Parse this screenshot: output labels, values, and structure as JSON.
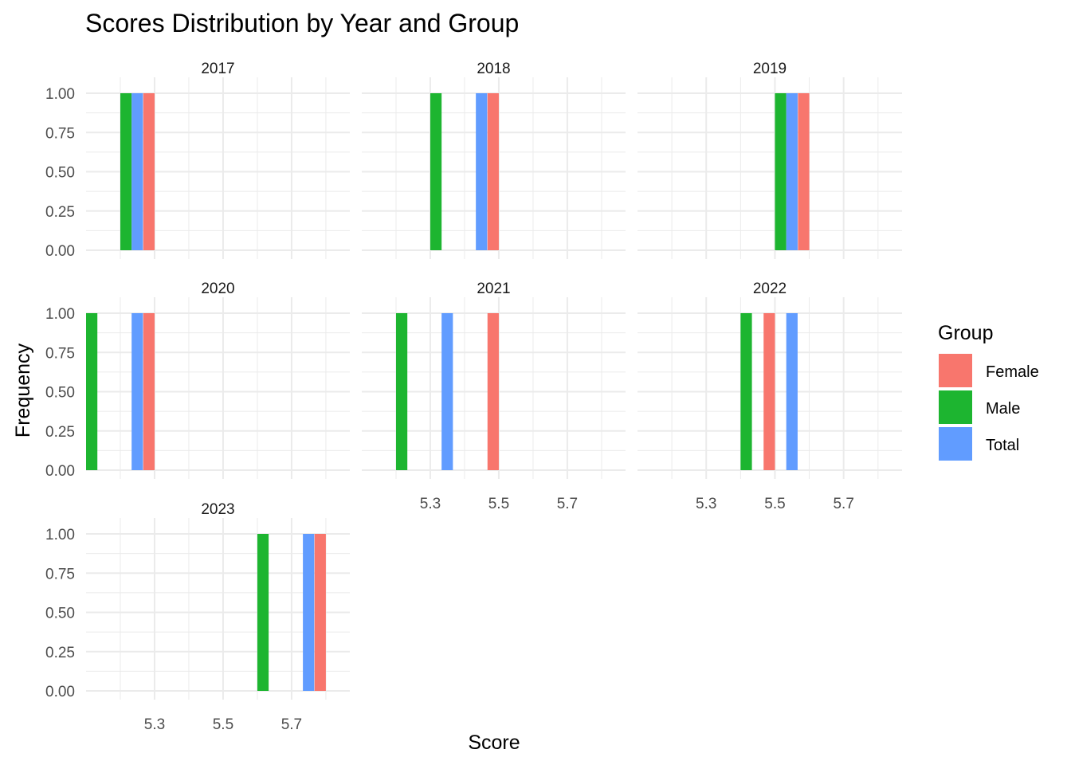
{
  "chart_data": {
    "type": "bar",
    "title": "Scores Distribution by Year and Group",
    "xlabel": "Score",
    "ylabel": "Frequency",
    "xlim": [
      5.1,
      5.87
    ],
    "ylim": [
      0,
      1
    ],
    "x_ticks": [
      "5.3",
      "5.5",
      "5.7"
    ],
    "y_ticks": [
      "0.00",
      "0.25",
      "0.50",
      "0.75",
      "1.00"
    ],
    "grid": true,
    "bin_width": 0.033,
    "legend": {
      "title": "Group",
      "position": "right",
      "entries": [
        "Female",
        "Male",
        "Total"
      ]
    },
    "colors": {
      "Female": "#F8766D",
      "Male": "#1DB530",
      "Total": "#619CFF"
    },
    "panels": [
      {
        "year": "2017",
        "bars": [
          {
            "group": "Male",
            "x": 5.2,
            "frequency": 1
          },
          {
            "group": "Total",
            "x": 5.233,
            "frequency": 1
          },
          {
            "group": "Female",
            "x": 5.267,
            "frequency": 1
          }
        ]
      },
      {
        "year": "2018",
        "bars": [
          {
            "group": "Male",
            "x": 5.3,
            "frequency": 1
          },
          {
            "group": "Total",
            "x": 5.433,
            "frequency": 1
          },
          {
            "group": "Female",
            "x": 5.467,
            "frequency": 1
          }
        ]
      },
      {
        "year": "2019",
        "bars": [
          {
            "group": "Male",
            "x": 5.5,
            "frequency": 1
          },
          {
            "group": "Total",
            "x": 5.533,
            "frequency": 1
          },
          {
            "group": "Female",
            "x": 5.567,
            "frequency": 1
          }
        ]
      },
      {
        "year": "2020",
        "bars": [
          {
            "group": "Male",
            "x": 5.1,
            "frequency": 1
          },
          {
            "group": "Total",
            "x": 5.233,
            "frequency": 1
          },
          {
            "group": "Female",
            "x": 5.267,
            "frequency": 1
          }
        ]
      },
      {
        "year": "2021",
        "bars": [
          {
            "group": "Male",
            "x": 5.2,
            "frequency": 1
          },
          {
            "group": "Total",
            "x": 5.333,
            "frequency": 1
          },
          {
            "group": "Female",
            "x": 5.467,
            "frequency": 1
          }
        ]
      },
      {
        "year": "2022",
        "bars": [
          {
            "group": "Male",
            "x": 5.4,
            "frequency": 1
          },
          {
            "group": "Female",
            "x": 5.467,
            "frequency": 1
          },
          {
            "group": "Total",
            "x": 5.533,
            "frequency": 1
          }
        ]
      },
      {
        "year": "2023",
        "bars": [
          {
            "group": "Male",
            "x": 5.6,
            "frequency": 1
          },
          {
            "group": "Total",
            "x": 5.733,
            "frequency": 1
          },
          {
            "group": "Female",
            "x": 5.767,
            "frequency": 1
          }
        ]
      }
    ]
  }
}
